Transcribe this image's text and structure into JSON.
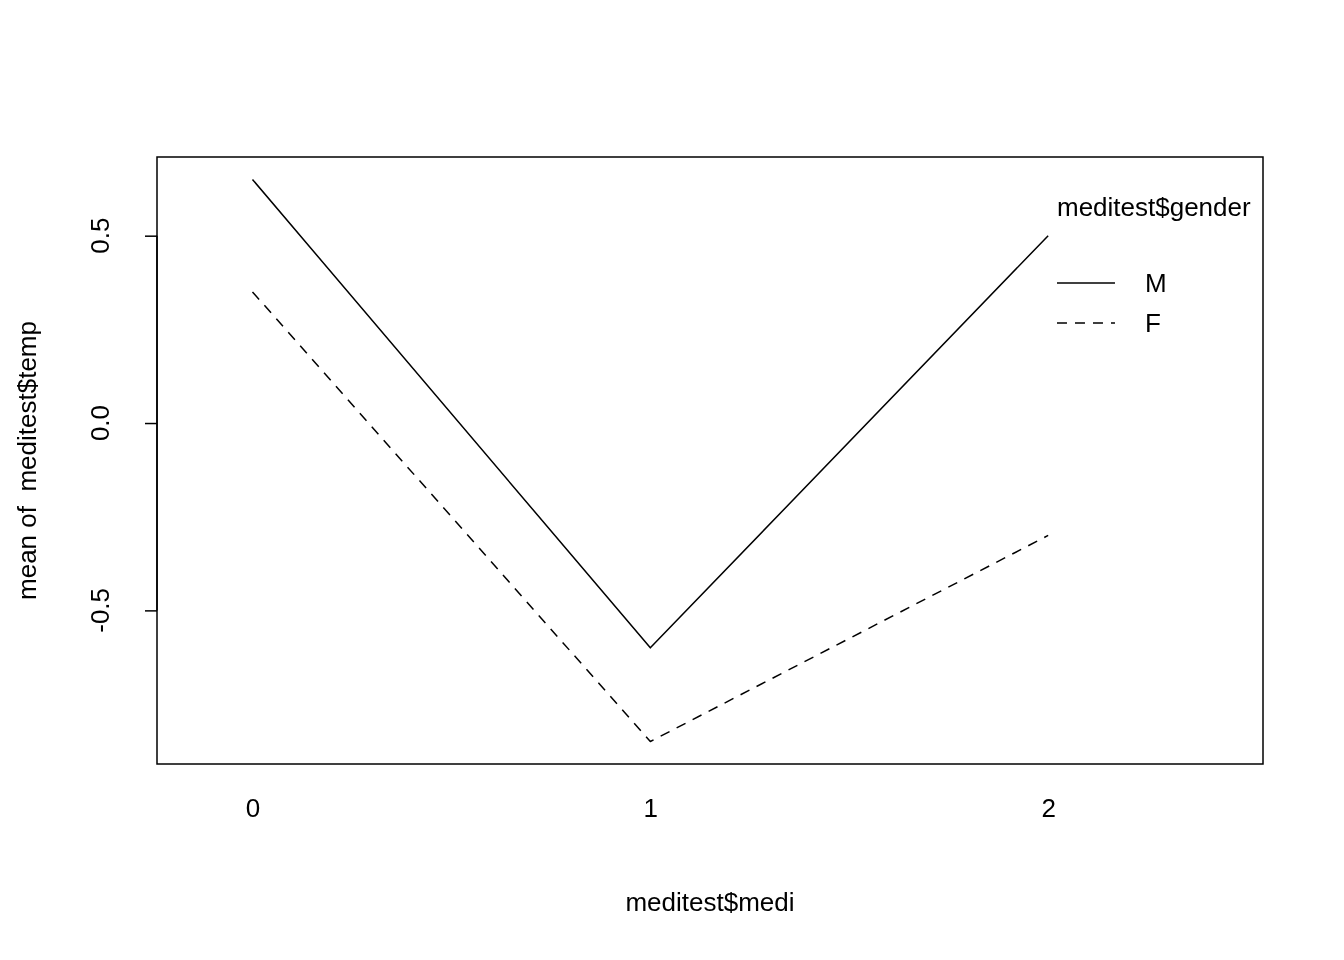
{
  "chart_data": {
    "type": "line",
    "xlabel": "meditest$medi",
    "ylabel": "mean of  meditest$temp",
    "legend_title": "meditest$gender",
    "categories": [
      "0",
      "1",
      "2"
    ],
    "series": [
      {
        "name": "M",
        "color": "#000000",
        "line_style": "solid",
        "values": [
          0.65,
          -0.6,
          0.5
        ]
      },
      {
        "name": "F",
        "color": "#000000",
        "line_style": "dashed",
        "values": [
          0.35,
          -0.85,
          -0.3
        ]
      }
    ],
    "ylim": [
      -0.91,
      0.71
    ],
    "yticks": [
      {
        "value": -0.5,
        "label": "-0.5"
      },
      {
        "value": 0,
        "label": "0.0"
      },
      {
        "value": 0.5,
        "label": "0.5"
      }
    ],
    "legend": "top right",
    "grid": false,
    "marker": "none"
  }
}
